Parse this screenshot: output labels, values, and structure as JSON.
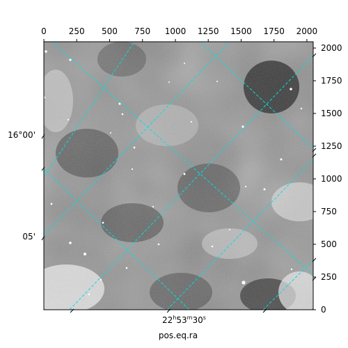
{
  "chart_data": {
    "type": "image",
    "title": "",
    "colormap": "gray",
    "pixel_axes": {
      "x_range": [
        0,
        2048
      ],
      "y_range": [
        0,
        2048
      ],
      "x_ticks": [
        0,
        250,
        500,
        750,
        1000,
        1250,
        1500,
        1750,
        2000
      ],
      "x_tick_labels": [
        "0",
        "250",
        "500",
        "750",
        "1000",
        "1250",
        "1500",
        "1750",
        "2000"
      ],
      "x_position": "top",
      "y_ticks": [
        0,
        250,
        500,
        750,
        1000,
        1250,
        1500,
        1750,
        2000
      ],
      "y_tick_labels": [
        "0",
        "250",
        "500",
        "750",
        "1000",
        "1250",
        "1500",
        "1750",
        "2000"
      ],
      "y_position": "right"
    },
    "world_axes": {
      "xlabel": "pos.eq.ra",
      "ylabel": "",
      "ra_tick_label": {
        "h": "22",
        "m": "53",
        "s": "30"
      },
      "dec_tick_labels": [
        "16°00'",
        "05'"
      ]
    },
    "grid": {
      "on": true,
      "color": "#00e0e0",
      "style": "dashed"
    }
  }
}
